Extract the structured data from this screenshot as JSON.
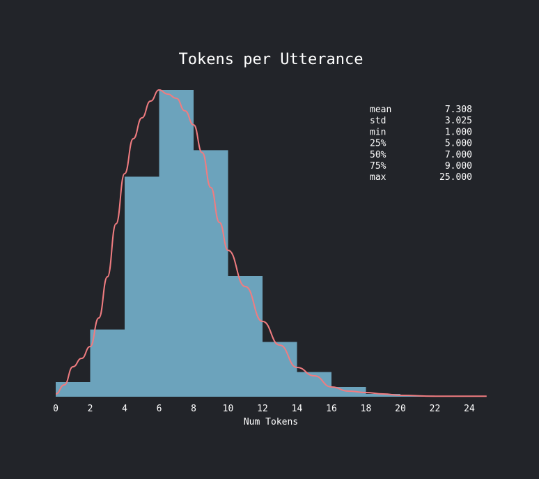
{
  "chart_data": {
    "type": "bar",
    "title": "Tokens per Utterance",
    "xlabel": "Num Tokens",
    "ylabel": "",
    "xlim": [
      0,
      25
    ],
    "ylim": [
      0,
      0.22
    ],
    "grid": false,
    "bar_color": "#6ca3bc",
    "kde_color": "#f07c80",
    "bins": [
      {
        "x0": 0,
        "x1": 2,
        "value": 0.0105
      },
      {
        "x0": 2,
        "x1": 4,
        "value": 0.0482
      },
      {
        "x0": 4,
        "x1": 6,
        "value": 0.1578
      },
      {
        "x0": 6,
        "x1": 8,
        "value": 0.22
      },
      {
        "x0": 8,
        "x1": 10,
        "value": 0.1768
      },
      {
        "x0": 10,
        "x1": 12,
        "value": 0.0865
      },
      {
        "x0": 12,
        "x1": 14,
        "value": 0.0393
      },
      {
        "x0": 14,
        "x1": 16,
        "value": 0.0177
      },
      {
        "x0": 16,
        "x1": 18,
        "value": 0.007
      },
      {
        "x0": 18,
        "x1": 20,
        "value": 0.002
      },
      {
        "x0": 20,
        "x1": 22,
        "value": 0.0008
      },
      {
        "x0": 22,
        "x1": 24,
        "value": 0.0003
      },
      {
        "x0": 24,
        "x1": 25,
        "value": 0.0002
      }
    ],
    "kde": {
      "x": [
        0,
        0.5,
        1,
        1.5,
        2,
        2.5,
        3,
        3.5,
        4,
        4.5,
        5,
        5.5,
        6,
        6.5,
        7,
        7.5,
        8,
        8.5,
        9,
        9.5,
        10,
        11,
        12,
        13,
        14,
        15,
        16,
        17,
        18,
        19,
        20,
        22,
        25
      ],
      "y": [
        0.002,
        0.0085,
        0.0215,
        0.0275,
        0.036,
        0.0565,
        0.086,
        0.124,
        0.16,
        0.185,
        0.2,
        0.212,
        0.22,
        0.217,
        0.214,
        0.205,
        0.195,
        0.175,
        0.15,
        0.125,
        0.105,
        0.079,
        0.054,
        0.037,
        0.021,
        0.015,
        0.007,
        0.004,
        0.003,
        0.002,
        0.001,
        0.0004,
        0.0004
      ]
    },
    "x_ticks": [
      "0",
      "2",
      "4",
      "6",
      "8",
      "10",
      "12",
      "14",
      "16",
      "18",
      "20",
      "22",
      "24"
    ],
    "stats": [
      {
        "label": "mean",
        "value": "7.308"
      },
      {
        "label": "std",
        "value": "3.025"
      },
      {
        "label": "min",
        "value": "1.000"
      },
      {
        "label": "25%",
        "value": "5.000"
      },
      {
        "label": "50%",
        "value": "7.000"
      },
      {
        "label": "75%",
        "value": "9.000"
      },
      {
        "label": "max",
        "value": "25.000"
      }
    ]
  }
}
